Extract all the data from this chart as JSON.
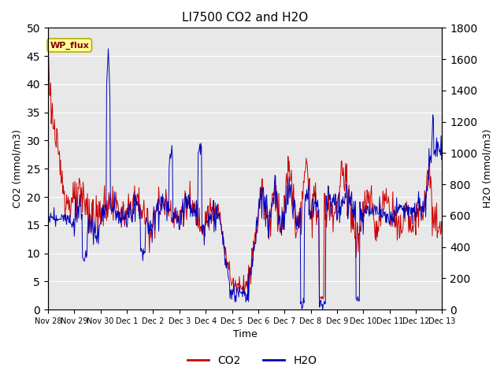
{
  "title": "LI7500 CO2 and H2O",
  "xlabel": "Time",
  "ylabel_left": "CO2 (mmol/m3)",
  "ylabel_right": "H2O (mmol/m3)",
  "ylim_left": [
    0,
    50
  ],
  "ylim_right": [
    0,
    1800
  ],
  "co2_color": "#CC0000",
  "h2o_color": "#0000BB",
  "background_color": "#E8E8E8",
  "annotation_text": "WP_flux",
  "legend_co2": "CO2",
  "legend_h2o": "H2O",
  "tick_labels": [
    "Nov 28",
    "Nov 29",
    "Nov 30",
    "Dec 1",
    "Dec 2",
    "Dec 3",
    "Dec 4",
    "Dec 5",
    "Dec 6",
    "Dec 7",
    "Dec 8",
    "Dec 9",
    "Dec 10",
    "Dec 11",
    "Dec 12",
    "Dec 13"
  ]
}
